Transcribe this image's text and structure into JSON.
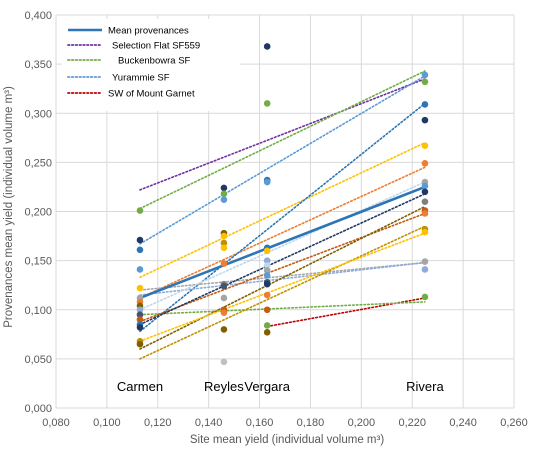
{
  "chart_data": {
    "type": "scatter",
    "xlabel": "Site mean yield (individual volume m³)",
    "ylabel": "Provenances mean yield (individual volume m³)",
    "xlim": [
      0.08,
      0.26
    ],
    "ylim": [
      0.0,
      0.4
    ],
    "x_ticks": [
      "0,080",
      "0,100",
      "0,120",
      "0,140",
      "0,160",
      "0,180",
      "0,200",
      "0,220",
      "0,240",
      "0,260"
    ],
    "y_ticks": [
      "0,000",
      "0,050",
      "0,100",
      "0,150",
      "0,200",
      "0,250",
      "0,300",
      "0,350",
      "0,400"
    ],
    "grid": true,
    "legend_position": "top-left",
    "sites": [
      {
        "name": "Carmen",
        "x": 0.113
      },
      {
        "name": "Reyles",
        "x": 0.146
      },
      {
        "name": "Vergara",
        "x": 0.163
      },
      {
        "name": "Rivera",
        "x": 0.225
      }
    ],
    "legend": [
      {
        "name": "Mean provenances",
        "color": "#2e75b6",
        "style": "solid"
      },
      {
        "name": "Selection Flat SF559",
        "color": "#7030a0",
        "style": "dotted"
      },
      {
        "name": "Buckenbowra SF",
        "color": "#70ad47",
        "style": "dotted"
      },
      {
        "name": "Yurammie SF",
        "color": "#5b9bd5",
        "style": "dotted"
      },
      {
        "name": "SW of Mount Garnet",
        "color": "#c00000",
        "style": "dotted"
      }
    ],
    "mean_line": {
      "x": [
        0.113,
        0.225
      ],
      "y": [
        0.112,
        0.225
      ],
      "color": "#2e75b6"
    },
    "trendlines": [
      {
        "color": "#7030a0",
        "x": [
          0.113,
          0.225
        ],
        "y": [
          0.222,
          0.335
        ]
      },
      {
        "color": "#70ad47",
        "x": [
          0.113,
          0.225
        ],
        "y": [
          0.203,
          0.343
        ]
      },
      {
        "color": "#5b9bd5",
        "x": [
          0.113,
          0.225
        ],
        "y": [
          0.167,
          0.338
        ]
      },
      {
        "color": "#c00000",
        "x": [
          0.163,
          0.225
        ],
        "y": [
          0.083,
          0.112
        ]
      },
      {
        "color": "#ffc000",
        "x": [
          0.113,
          0.225
        ],
        "y": [
          0.133,
          0.27
        ]
      },
      {
        "color": "#ed7d31",
        "x": [
          0.113,
          0.225
        ],
        "y": [
          0.112,
          0.245
        ]
      },
      {
        "color": "#2e75b6",
        "x": [
          0.113,
          0.225
        ],
        "y": [
          0.078,
          0.31
        ]
      },
      {
        "color": "#a5a5a5",
        "x": [
          0.113,
          0.225
        ],
        "y": [
          0.12,
          0.148
        ]
      },
      {
        "color": "#8faadc",
        "x": [
          0.113,
          0.225
        ],
        "y": [
          0.115,
          0.148
        ]
      },
      {
        "color": "#70ad47",
        "x": [
          0.113,
          0.225
        ],
        "y": [
          0.095,
          0.108
        ]
      },
      {
        "color": "#c55a11",
        "x": [
          0.113,
          0.225
        ],
        "y": [
          0.088,
          0.198
        ]
      },
      {
        "color": "#203864",
        "x": [
          0.113,
          0.225
        ],
        "y": [
          0.085,
          0.218
        ]
      },
      {
        "color": "#7f6000",
        "x": [
          0.113,
          0.225
        ],
        "y": [
          0.06,
          0.205
        ]
      },
      {
        "color": "#bf9000",
        "x": [
          0.113,
          0.225
        ],
        "y": [
          0.05,
          0.185
        ]
      },
      {
        "color": "#ffc000",
        "x": [
          0.113,
          0.225
        ],
        "y": [
          0.068,
          0.178
        ]
      },
      {
        "color": "#bdd7ee",
        "x": [
          0.113,
          0.225
        ],
        "y": [
          0.1,
          0.23
        ]
      }
    ],
    "points": [
      {
        "x": 0.113,
        "y": 0.201,
        "color": "#70ad47"
      },
      {
        "x": 0.113,
        "y": 0.171,
        "color": "#203864"
      },
      {
        "x": 0.113,
        "y": 0.161,
        "color": "#2e75b6"
      },
      {
        "x": 0.113,
        "y": 0.141,
        "color": "#5b9bd5"
      },
      {
        "x": 0.113,
        "y": 0.122,
        "color": "#ffc000"
      },
      {
        "x": 0.113,
        "y": 0.112,
        "color": "#a5a5a5"
      },
      {
        "x": 0.113,
        "y": 0.108,
        "color": "#ed7d31"
      },
      {
        "x": 0.113,
        "y": 0.104,
        "color": "#7f6000"
      },
      {
        "x": 0.113,
        "y": 0.1,
        "color": "#8faadc"
      },
      {
        "x": 0.113,
        "y": 0.095,
        "color": "#44546a"
      },
      {
        "x": 0.113,
        "y": 0.09,
        "color": "#c55a11"
      },
      {
        "x": 0.113,
        "y": 0.085,
        "color": "#2e75b6"
      },
      {
        "x": 0.113,
        "y": 0.082,
        "color": "#203864"
      },
      {
        "x": 0.113,
        "y": 0.068,
        "color": "#bf9000"
      },
      {
        "x": 0.113,
        "y": 0.065,
        "color": "#7f6000"
      },
      {
        "x": 0.146,
        "y": 0.224,
        "color": "#203864"
      },
      {
        "x": 0.146,
        "y": 0.218,
        "color": "#70ad47"
      },
      {
        "x": 0.146,
        "y": 0.212,
        "color": "#5b9bd5"
      },
      {
        "x": 0.146,
        "y": 0.178,
        "color": "#7f6000"
      },
      {
        "x": 0.146,
        "y": 0.175,
        "color": "#ffc000"
      },
      {
        "x": 0.146,
        "y": 0.168,
        "color": "#bf9000"
      },
      {
        "x": 0.146,
        "y": 0.163,
        "color": "#ffc000"
      },
      {
        "x": 0.146,
        "y": 0.147,
        "color": "#ed7d31"
      },
      {
        "x": 0.146,
        "y": 0.126,
        "color": "#7f7f7f"
      },
      {
        "x": 0.146,
        "y": 0.124,
        "color": "#44546a"
      },
      {
        "x": 0.146,
        "y": 0.112,
        "color": "#a5a5a5"
      },
      {
        "x": 0.146,
        "y": 0.1,
        "color": "#c55a11"
      },
      {
        "x": 0.146,
        "y": 0.097,
        "color": "#ed7d31"
      },
      {
        "x": 0.146,
        "y": 0.08,
        "color": "#7f6000"
      },
      {
        "x": 0.146,
        "y": 0.047,
        "color": "#bfbfbf"
      },
      {
        "x": 0.163,
        "y": 0.368,
        "color": "#203864"
      },
      {
        "x": 0.163,
        "y": 0.31,
        "color": "#70ad47"
      },
      {
        "x": 0.163,
        "y": 0.232,
        "color": "#2e75b6"
      },
      {
        "x": 0.163,
        "y": 0.23,
        "color": "#5b9bd5"
      },
      {
        "x": 0.163,
        "y": 0.163,
        "color": "#2e75b6"
      },
      {
        "x": 0.163,
        "y": 0.16,
        "color": "#ffc000"
      },
      {
        "x": 0.163,
        "y": 0.15,
        "color": "#8faadc"
      },
      {
        "x": 0.163,
        "y": 0.145,
        "color": "#bdd7ee"
      },
      {
        "x": 0.163,
        "y": 0.14,
        "color": "#a5a5a5"
      },
      {
        "x": 0.163,
        "y": 0.135,
        "color": "#5b9bd5"
      },
      {
        "x": 0.163,
        "y": 0.128,
        "color": "#44546a"
      },
      {
        "x": 0.163,
        "y": 0.126,
        "color": "#203864"
      },
      {
        "x": 0.163,
        "y": 0.115,
        "color": "#ed7d31"
      },
      {
        "x": 0.163,
        "y": 0.1,
        "color": "#c55a11"
      },
      {
        "x": 0.163,
        "y": 0.084,
        "color": "#70ad47"
      },
      {
        "x": 0.163,
        "y": 0.077,
        "color": "#7f6000"
      },
      {
        "x": 0.225,
        "y": 0.339,
        "color": "#5b9bd5"
      },
      {
        "x": 0.225,
        "y": 0.332,
        "color": "#70ad47"
      },
      {
        "x": 0.225,
        "y": 0.309,
        "color": "#2e75b6"
      },
      {
        "x": 0.225,
        "y": 0.293,
        "color": "#203864"
      },
      {
        "x": 0.225,
        "y": 0.267,
        "color": "#ffc000"
      },
      {
        "x": 0.225,
        "y": 0.249,
        "color": "#ed7d31"
      },
      {
        "x": 0.225,
        "y": 0.23,
        "color": "#a5a5a5"
      },
      {
        "x": 0.225,
        "y": 0.226,
        "color": "#5b9bd5"
      },
      {
        "x": 0.225,
        "y": 0.22,
        "color": "#203864"
      },
      {
        "x": 0.225,
        "y": 0.21,
        "color": "#7f7f7f"
      },
      {
        "x": 0.225,
        "y": 0.201,
        "color": "#c55a11"
      },
      {
        "x": 0.225,
        "y": 0.198,
        "color": "#ed7d31"
      },
      {
        "x": 0.225,
        "y": 0.182,
        "color": "#bf9000"
      },
      {
        "x": 0.225,
        "y": 0.179,
        "color": "#ffc000"
      },
      {
        "x": 0.225,
        "y": 0.149,
        "color": "#a5a5a5"
      },
      {
        "x": 0.225,
        "y": 0.141,
        "color": "#8faadc"
      },
      {
        "x": 0.225,
        "y": 0.113,
        "color": "#70ad47"
      }
    ]
  }
}
